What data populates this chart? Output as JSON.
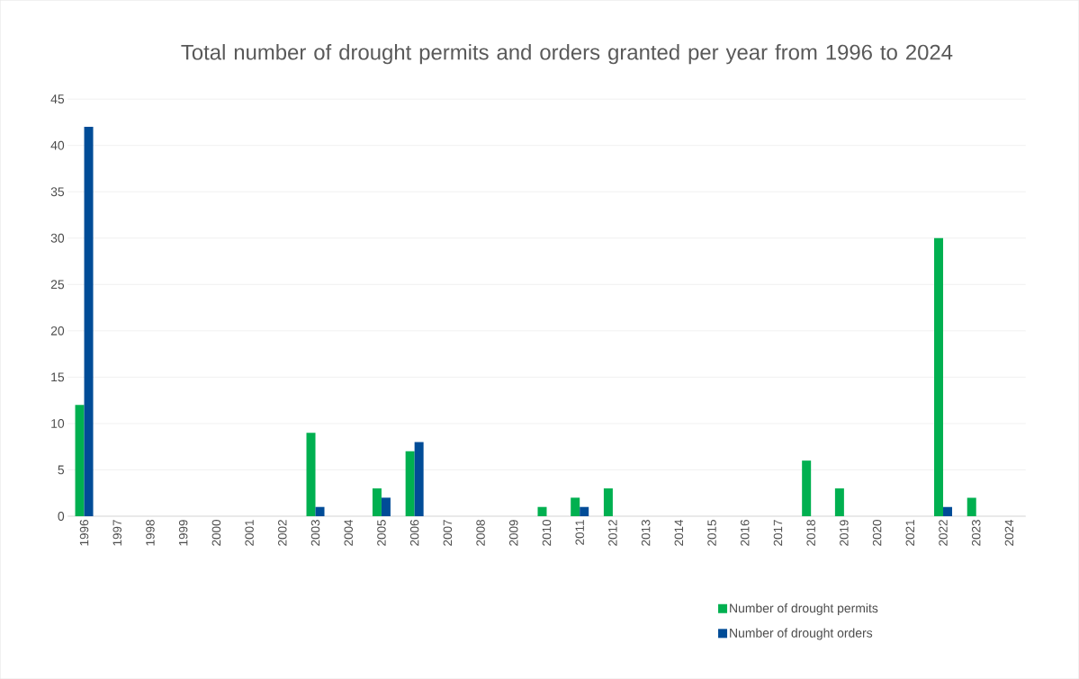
{
  "chart_data": {
    "type": "bar",
    "title": "Total number of drought permits and orders granted per year from 1996 to 2024",
    "categories": [
      "1996",
      "1997",
      "1998",
      "1999",
      "2000",
      "2001",
      "2002",
      "2003",
      "2004",
      "2005",
      "2006",
      "2007",
      "2008",
      "2009",
      "2010",
      "2011",
      "2012",
      "2013",
      "2014",
      "2015",
      "2016",
      "2017",
      "2018",
      "2019",
      "2020",
      "2021",
      "2022",
      "2023",
      "2024"
    ],
    "series": [
      {
        "name": "Number of drought permits",
        "color": "#00b050",
        "values": [
          12,
          0,
          0,
          0,
          0,
          0,
          0,
          9,
          0,
          3,
          7,
          0,
          0,
          0,
          1,
          2,
          3,
          0,
          0,
          0,
          0,
          0,
          6,
          3,
          0,
          0,
          30,
          2,
          0
        ]
      },
      {
        "name": "Number of drought orders",
        "color": "#004c97",
        "values": [
          42,
          0,
          0,
          0,
          0,
          0,
          0,
          1,
          0,
          2,
          8,
          0,
          0,
          0,
          0,
          1,
          0,
          0,
          0,
          0,
          0,
          0,
          0,
          0,
          0,
          0,
          1,
          0,
          0
        ]
      }
    ],
    "ylim": [
      0,
      45
    ],
    "yticks": [
      0,
      5,
      10,
      15,
      20,
      25,
      30,
      35,
      40,
      45
    ],
    "grid": "y",
    "legend": "bottom right"
  }
}
